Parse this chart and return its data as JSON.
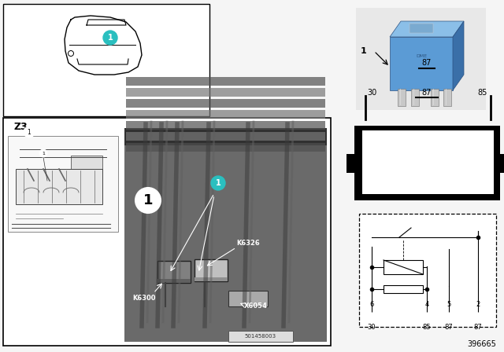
{
  "bg_color": "#f5f5f5",
  "fig_num": "396665",
  "relay_blue_main": "#5b9bd5",
  "relay_blue_light": "#8bbfe8",
  "relay_blue_dark": "#3a6fa8",
  "relay_gray": "#b0b0b0",
  "teal_color": "#2abfbf",
  "photo_bg": "#6a6a6a",
  "photo_dark": "#4a4a4a",
  "photo_light": "#9a9a9a",
  "white": "#ffffff",
  "black": "#000000",
  "part_number": "501458003",
  "z3_label": "Z3",
  "pin_top": [
    "87"
  ],
  "pin_mid_left": "30",
  "pin_mid_center": "87",
  "pin_mid_right": "85",
  "circuit_pins_top": [
    "6",
    "4",
    "5",
    "2"
  ],
  "circuit_pins_bot": [
    "30",
    "85",
    "87",
    "87"
  ],
  "k_labels": [
    "K6300",
    "K6326",
    "X6054"
  ]
}
